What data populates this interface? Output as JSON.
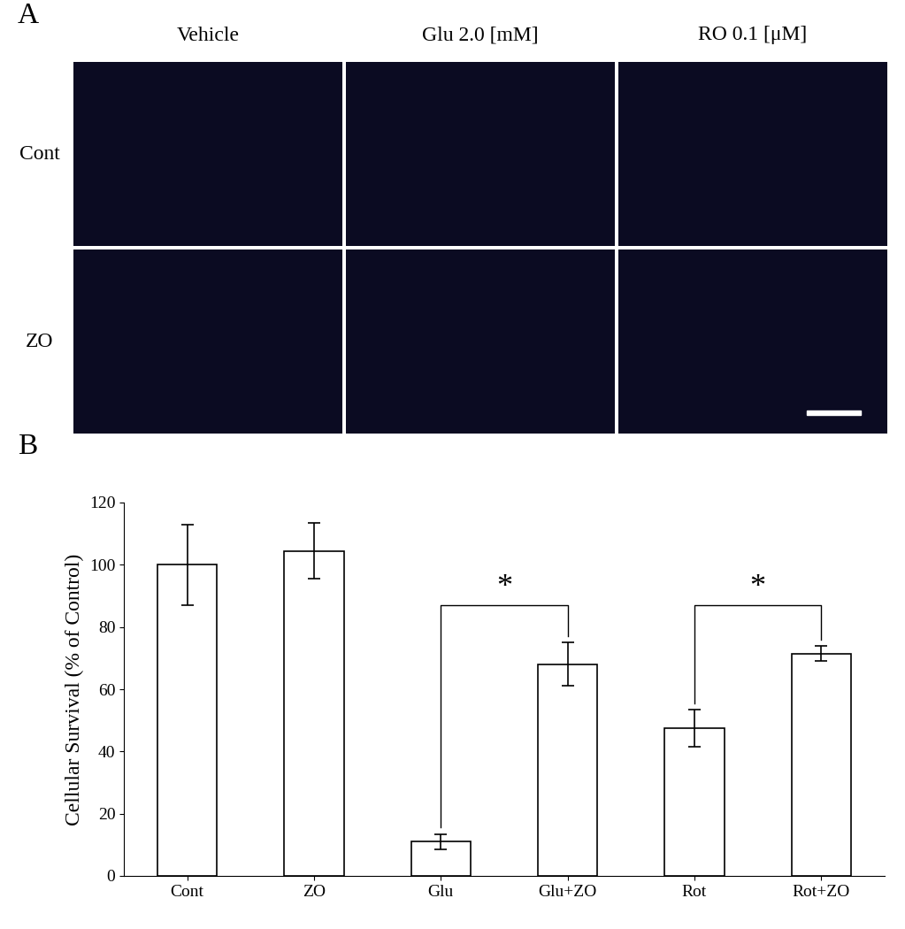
{
  "figure": {
    "panel_labels": [
      "A",
      "B"
    ]
  },
  "micrograph_grid": {
    "columns": [
      "Vehicle",
      "Glu 2.0 [mM]",
      "RO 0.1 [μM]"
    ],
    "rows": [
      "Cont",
      "ZO"
    ]
  },
  "chart_data": {
    "type": "bar",
    "categories": [
      "Cont",
      "ZO",
      "Glu",
      "Glu+ZO",
      "Rot",
      "Rot+ZO"
    ],
    "values": [
      100,
      104.5,
      11,
      68,
      47.5,
      71.5
    ],
    "errors": [
      13,
      9,
      2.5,
      7,
      6,
      2.5
    ],
    "color": "#ffffff",
    "y_label": "Cellular Survival (% of Control)",
    "ylim": [
      0,
      120
    ],
    "yticks": [
      0,
      20,
      40,
      60,
      80,
      100,
      120
    ],
    "brackets": [
      {
        "from": "Glu",
        "to": "Glu+ZO",
        "text": "*",
        "y": 87
      },
      {
        "from": "Rot",
        "to": "Rot+ZO",
        "text": "*",
        "y": 87
      }
    ]
  }
}
